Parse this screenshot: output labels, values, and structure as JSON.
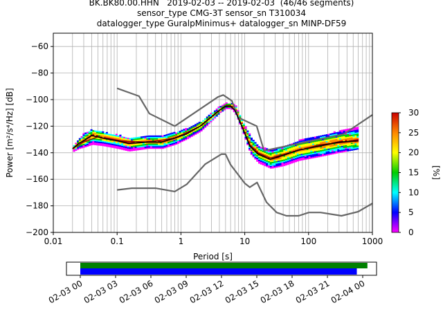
{
  "title_lines": [
    "BK.BK80.00.HHN   2019-02-03 -- 2019-02-03  (46/46 segments)",
    "sensor_type CMG-3T sensor_sn T310034",
    "datalogger_type GuralpMinimus+ datalogger_sn MINP-DF59"
  ],
  "chart_data": [
    {
      "type": "heatmap",
      "description_kind": "probabilistic power spectral density",
      "xlabel": "Period [s]",
      "ylabel": "Power [m²/s⁴/Hz] [dB]",
      "xscale": "log",
      "xlim": [
        0.01,
        1000
      ],
      "ylim": [
        -200,
        -50
      ],
      "xticks": [
        0.01,
        0.1,
        1,
        10,
        100,
        1000
      ],
      "xticklabels": [
        "0.01",
        "0.1",
        "1",
        "10",
        "100",
        "1000"
      ],
      "yticks": [
        -200,
        -180,
        -160,
        -140,
        -120,
        -100,
        -80,
        -60
      ],
      "grid": true,
      "colorbar": {
        "label": "[%]",
        "range": [
          0,
          30
        ],
        "ticks": [
          0,
          5,
          10,
          15,
          20,
          25,
          30
        ],
        "colors": [
          "#ff00ff",
          "#0000ff",
          "#00ffff",
          "#00cc00",
          "#ffff00",
          "#ff8800",
          "#cc0000"
        ]
      },
      "nhnm": {
        "name": "NHNM",
        "color": "#666666",
        "points": [
          [
            0.1,
            -91.5
          ],
          [
            0.22,
            -97.4
          ],
          [
            0.32,
            -110.5
          ],
          [
            0.8,
            -120
          ],
          [
            3.8,
            -98
          ],
          [
            4.6,
            -96.5
          ],
          [
            6.3,
            -101
          ],
          [
            7.9,
            -113.5
          ],
          [
            15.4,
            -120
          ],
          [
            20,
            -138.5
          ],
          [
            354.8,
            -126
          ],
          [
            1000,
            -111.5
          ]
        ]
      },
      "nlnm": {
        "name": "NLNM",
        "color": "#666666",
        "points": [
          [
            0.1,
            -168
          ],
          [
            0.17,
            -166.7
          ],
          [
            0.4,
            -166.7
          ],
          [
            0.8,
            -169.2
          ],
          [
            1.24,
            -163.7
          ],
          [
            2.4,
            -148.6
          ],
          [
            4.3,
            -141.1
          ],
          [
            5,
            -141.1
          ],
          [
            6,
            -149
          ],
          [
            10,
            -163
          ],
          [
            12,
            -166
          ],
          [
            15.6,
            -162.4
          ],
          [
            21.9,
            -177.3
          ],
          [
            31.6,
            -185
          ],
          [
            45,
            -187.5
          ],
          [
            70,
            -187.5
          ],
          [
            101,
            -185
          ],
          [
            154,
            -185
          ],
          [
            328,
            -187.5
          ],
          [
            600,
            -184.4
          ],
          [
            1000,
            -178.2
          ]
        ]
      },
      "mean_curve": {
        "color": "#000000",
        "points": [
          [
            0.02,
            -137
          ],
          [
            0.025,
            -133
          ],
          [
            0.03,
            -131
          ],
          [
            0.04,
            -127
          ],
          [
            0.06,
            -129
          ],
          [
            0.1,
            -131
          ],
          [
            0.15,
            -133
          ],
          [
            0.3,
            -132
          ],
          [
            0.5,
            -132
          ],
          [
            0.8,
            -129
          ],
          [
            1.2,
            -126
          ],
          [
            2,
            -120
          ],
          [
            3,
            -113
          ],
          [
            4,
            -108
          ],
          [
            5,
            -105
          ],
          [
            6,
            -105
          ],
          [
            7,
            -108
          ],
          [
            9,
            -120
          ],
          [
            12,
            -135
          ],
          [
            16,
            -141
          ],
          [
            25,
            -145
          ],
          [
            40,
            -142
          ],
          [
            70,
            -138
          ],
          [
            150,
            -135
          ],
          [
            300,
            -132
          ],
          [
            600,
            -131
          ]
        ]
      },
      "mode_curve": {
        "color": "#8b0000",
        "points": [
          [
            0.02,
            -137
          ],
          [
            0.03,
            -132
          ],
          [
            0.05,
            -128
          ],
          [
            0.1,
            -131
          ],
          [
            0.3,
            -132
          ],
          [
            0.8,
            -129
          ],
          [
            2,
            -120
          ],
          [
            4,
            -108
          ],
          [
            5,
            -105
          ],
          [
            6,
            -105
          ],
          [
            7,
            -108
          ],
          [
            9,
            -120
          ],
          [
            12,
            -134
          ],
          [
            16,
            -140
          ],
          [
            25,
            -144
          ],
          [
            50,
            -140
          ],
          [
            150,
            -134
          ],
          [
            600,
            -131
          ]
        ]
      },
      "psd_band": {
        "points_upper": [
          [
            0.019,
            -136
          ],
          [
            0.025,
            -130
          ],
          [
            0.03,
            -125
          ],
          [
            0.04,
            -123
          ],
          [
            0.06,
            -125
          ],
          [
            0.1,
            -127
          ],
          [
            0.15,
            -129
          ],
          [
            0.3,
            -128
          ],
          [
            0.5,
            -127
          ],
          [
            0.8,
            -125
          ],
          [
            1.2,
            -122
          ],
          [
            2,
            -117
          ],
          [
            3,
            -110
          ],
          [
            4,
            -105
          ],
          [
            5,
            -103
          ],
          [
            6,
            -103
          ],
          [
            7,
            -105
          ],
          [
            9,
            -117
          ],
          [
            12,
            -128
          ],
          [
            16,
            -136
          ],
          [
            25,
            -138
          ],
          [
            40,
            -135
          ],
          [
            70,
            -131
          ],
          [
            150,
            -127
          ],
          [
            300,
            -124
          ],
          [
            650,
            -120
          ]
        ],
        "points_lower": [
          [
            0.019,
            -140
          ],
          [
            0.025,
            -137
          ],
          [
            0.03,
            -136
          ],
          [
            0.04,
            -134
          ],
          [
            0.06,
            -135
          ],
          [
            0.1,
            -137
          ],
          [
            0.15,
            -139
          ],
          [
            0.3,
            -137
          ],
          [
            0.5,
            -137
          ],
          [
            0.8,
            -134
          ],
          [
            1.2,
            -130
          ],
          [
            2,
            -124
          ],
          [
            3,
            -116
          ],
          [
            4,
            -110
          ],
          [
            5,
            -107
          ],
          [
            6,
            -107
          ],
          [
            7,
            -111
          ],
          [
            9,
            -124
          ],
          [
            12,
            -141
          ],
          [
            16,
            -148
          ],
          [
            25,
            -152
          ],
          [
            40,
            -150
          ],
          [
            70,
            -146
          ],
          [
            150,
            -143
          ],
          [
            300,
            -140
          ],
          [
            650,
            -137
          ]
        ]
      }
    },
    {
      "type": "bar",
      "description_kind": "data coverage timeline",
      "xticklabels": [
        "02-03 00",
        "02-03 03",
        "02-03 06",
        "02-03 09",
        "02-03 12",
        "02-03 15",
        "02-03 18",
        "02-03 21",
        "02-04 00"
      ],
      "bars": [
        {
          "color": "#008000",
          "start_hour": 0,
          "end_hour": 24.4
        },
        {
          "color": "#0000ff",
          "start_hour": 0,
          "end_hour": 23.5
        }
      ]
    }
  ]
}
